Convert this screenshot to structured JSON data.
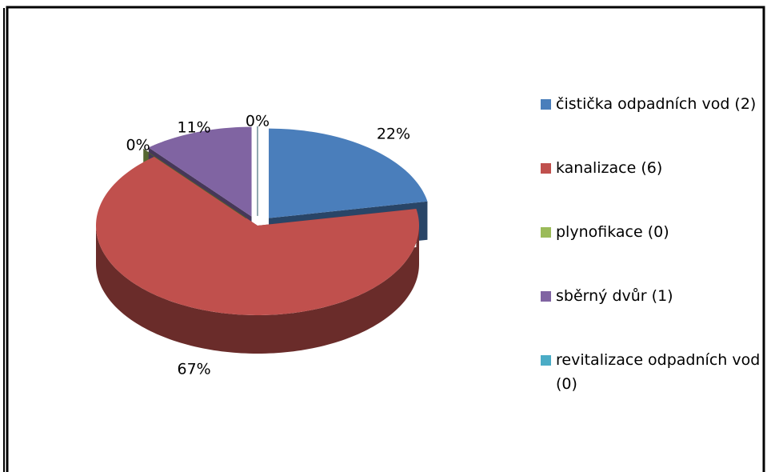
{
  "chart_data": {
    "type": "pie",
    "categories": [
      "čistička odpadních vod (2)",
      "kanalizace (6)",
      "plynofikace (0)",
      "sběrný dvůr (1)",
      "revitalizace odpadních vod (0)"
    ],
    "values": [
      22,
      67,
      0,
      11,
      0
    ],
    "value_labels": [
      "22%",
      "67%",
      "0%",
      "11%",
      "0%"
    ],
    "colors": [
      "#4a7ebb",
      "#c0504d",
      "#9bbb59",
      "#8064a2",
      "#4bacc6"
    ],
    "legend": "right"
  }
}
